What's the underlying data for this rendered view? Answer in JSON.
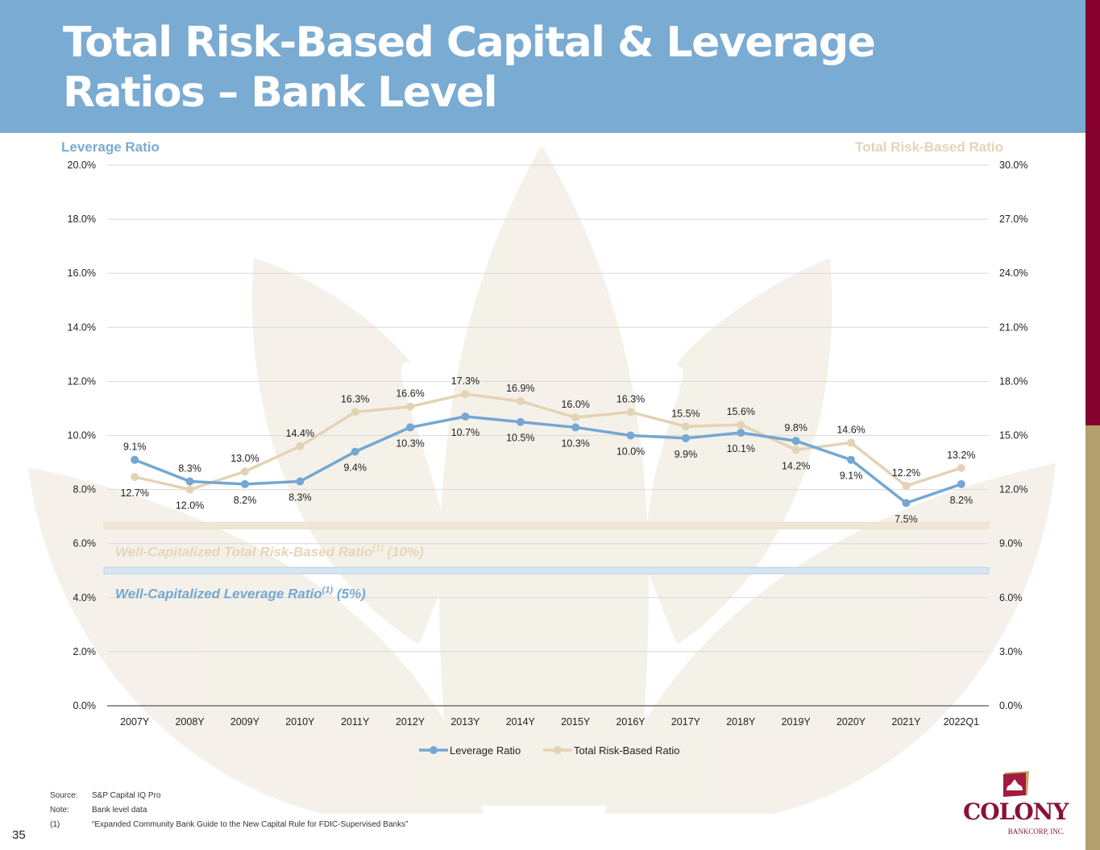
{
  "header": {
    "title": "Total Risk-Based Capital & Leverage Ratios – Bank Level"
  },
  "axis_titles": {
    "left": "Leverage Ratio",
    "right": "Total Risk-Based Ratio"
  },
  "colors": {
    "header_blue": "#7aabd2",
    "leverage_line": "#74a7d3",
    "trb_line": "#e3d3b5",
    "brand_red": "#85002e",
    "brand_gold": "#b39f6d"
  },
  "chart_data": {
    "type": "line",
    "title": "Total Risk-Based Capital & Leverage Ratios – Bank Level",
    "categories": [
      "2007Y",
      "2008Y",
      "2009Y",
      "2010Y",
      "2011Y",
      "2012Y",
      "2013Y",
      "2014Y",
      "2015Y",
      "2016Y",
      "2017Y",
      "2018Y",
      "2019Y",
      "2020Y",
      "2021Y",
      "2022Q1"
    ],
    "series": [
      {
        "name": "Leverage Ratio",
        "axis": "left",
        "values": [
          9.1,
          8.3,
          8.2,
          8.3,
          9.4,
          10.3,
          10.7,
          10.5,
          10.3,
          10.0,
          9.9,
          10.1,
          9.8,
          9.1,
          7.5,
          8.2
        ],
        "labels": [
          "9.1%",
          "8.3%",
          "8.2%",
          "8.3%",
          "9.4%",
          "10.3%",
          "10.7%",
          "10.5%",
          "10.3%",
          "10.0%",
          "9.9%",
          "10.1%",
          "9.8%",
          "9.1%",
          "7.5%",
          "8.2%"
        ],
        "label_positions": [
          "above",
          "above",
          "below",
          "below",
          "below",
          "below",
          "below",
          "below",
          "below",
          "below",
          "below",
          "below",
          "above",
          "below",
          "below",
          "below"
        ]
      },
      {
        "name": "Total Risk-Based Ratio",
        "axis": "right",
        "values": [
          12.7,
          12.0,
          13.0,
          14.4,
          16.3,
          16.6,
          17.3,
          16.9,
          16.0,
          16.3,
          15.5,
          15.6,
          14.2,
          14.6,
          12.2,
          13.2
        ],
        "labels": [
          "12.7%",
          "12.0%",
          "13.0%",
          "14.4%",
          "16.3%",
          "16.6%",
          "17.3%",
          "16.9%",
          "16.0%",
          "16.3%",
          "15.5%",
          "15.6%",
          "14.2%",
          "14.6%",
          "12.2%",
          "13.2%"
        ],
        "label_positions": [
          "below",
          "below",
          "above",
          "above",
          "above",
          "above",
          "above",
          "above",
          "above",
          "above",
          "above",
          "above",
          "below",
          "above",
          "above",
          "above"
        ]
      }
    ],
    "y_left": {
      "label": "Leverage Ratio",
      "min": 0,
      "max": 20,
      "step": 2,
      "ticks": [
        "0.0%",
        "2.0%",
        "4.0%",
        "6.0%",
        "8.0%",
        "10.0%",
        "12.0%",
        "14.0%",
        "16.0%",
        "18.0%",
        "20.0%"
      ]
    },
    "y_right": {
      "label": "Total Risk-Based Ratio",
      "min": 0,
      "max": 30,
      "step": 3,
      "ticks": [
        "0.0%",
        "3.0%",
        "6.0%",
        "9.0%",
        "12.0%",
        "15.0%",
        "18.0%",
        "21.0%",
        "24.0%",
        "27.0%",
        "30.0%"
      ]
    },
    "reference_lines": [
      {
        "name": "Well-Capitalized Total Risk-Based Ratio",
        "axis": "right",
        "value": 10,
        "label": "Well-Capitalized Total Risk-Based Ratio",
        "superscript": "(1)",
        "suffix": " (10%)"
      },
      {
        "name": "Well-Capitalized Leverage Ratio",
        "axis": "left",
        "value": 5,
        "label": "Well-Capitalized Leverage Ratio",
        "superscript": "(1)",
        "suffix": " (5%)"
      }
    ],
    "grid": true,
    "legend": "bottom-center",
    "legend_entries": [
      "Leverage Ratio",
      "Total Risk-Based Ratio"
    ]
  },
  "footnotes": [
    {
      "key": "Source:",
      "text": "S&P Capital IQ Pro"
    },
    {
      "key": "Note:",
      "text": "Bank level data"
    },
    {
      "key": "(1)",
      "text": "“Expanded Community Bank Guide to the New Capital Rule for FDIC-Supervised Banks”"
    }
  ],
  "page_number": "35",
  "logo": {
    "name": "COLONY",
    "subtitle": "BANKCORP, INC."
  }
}
